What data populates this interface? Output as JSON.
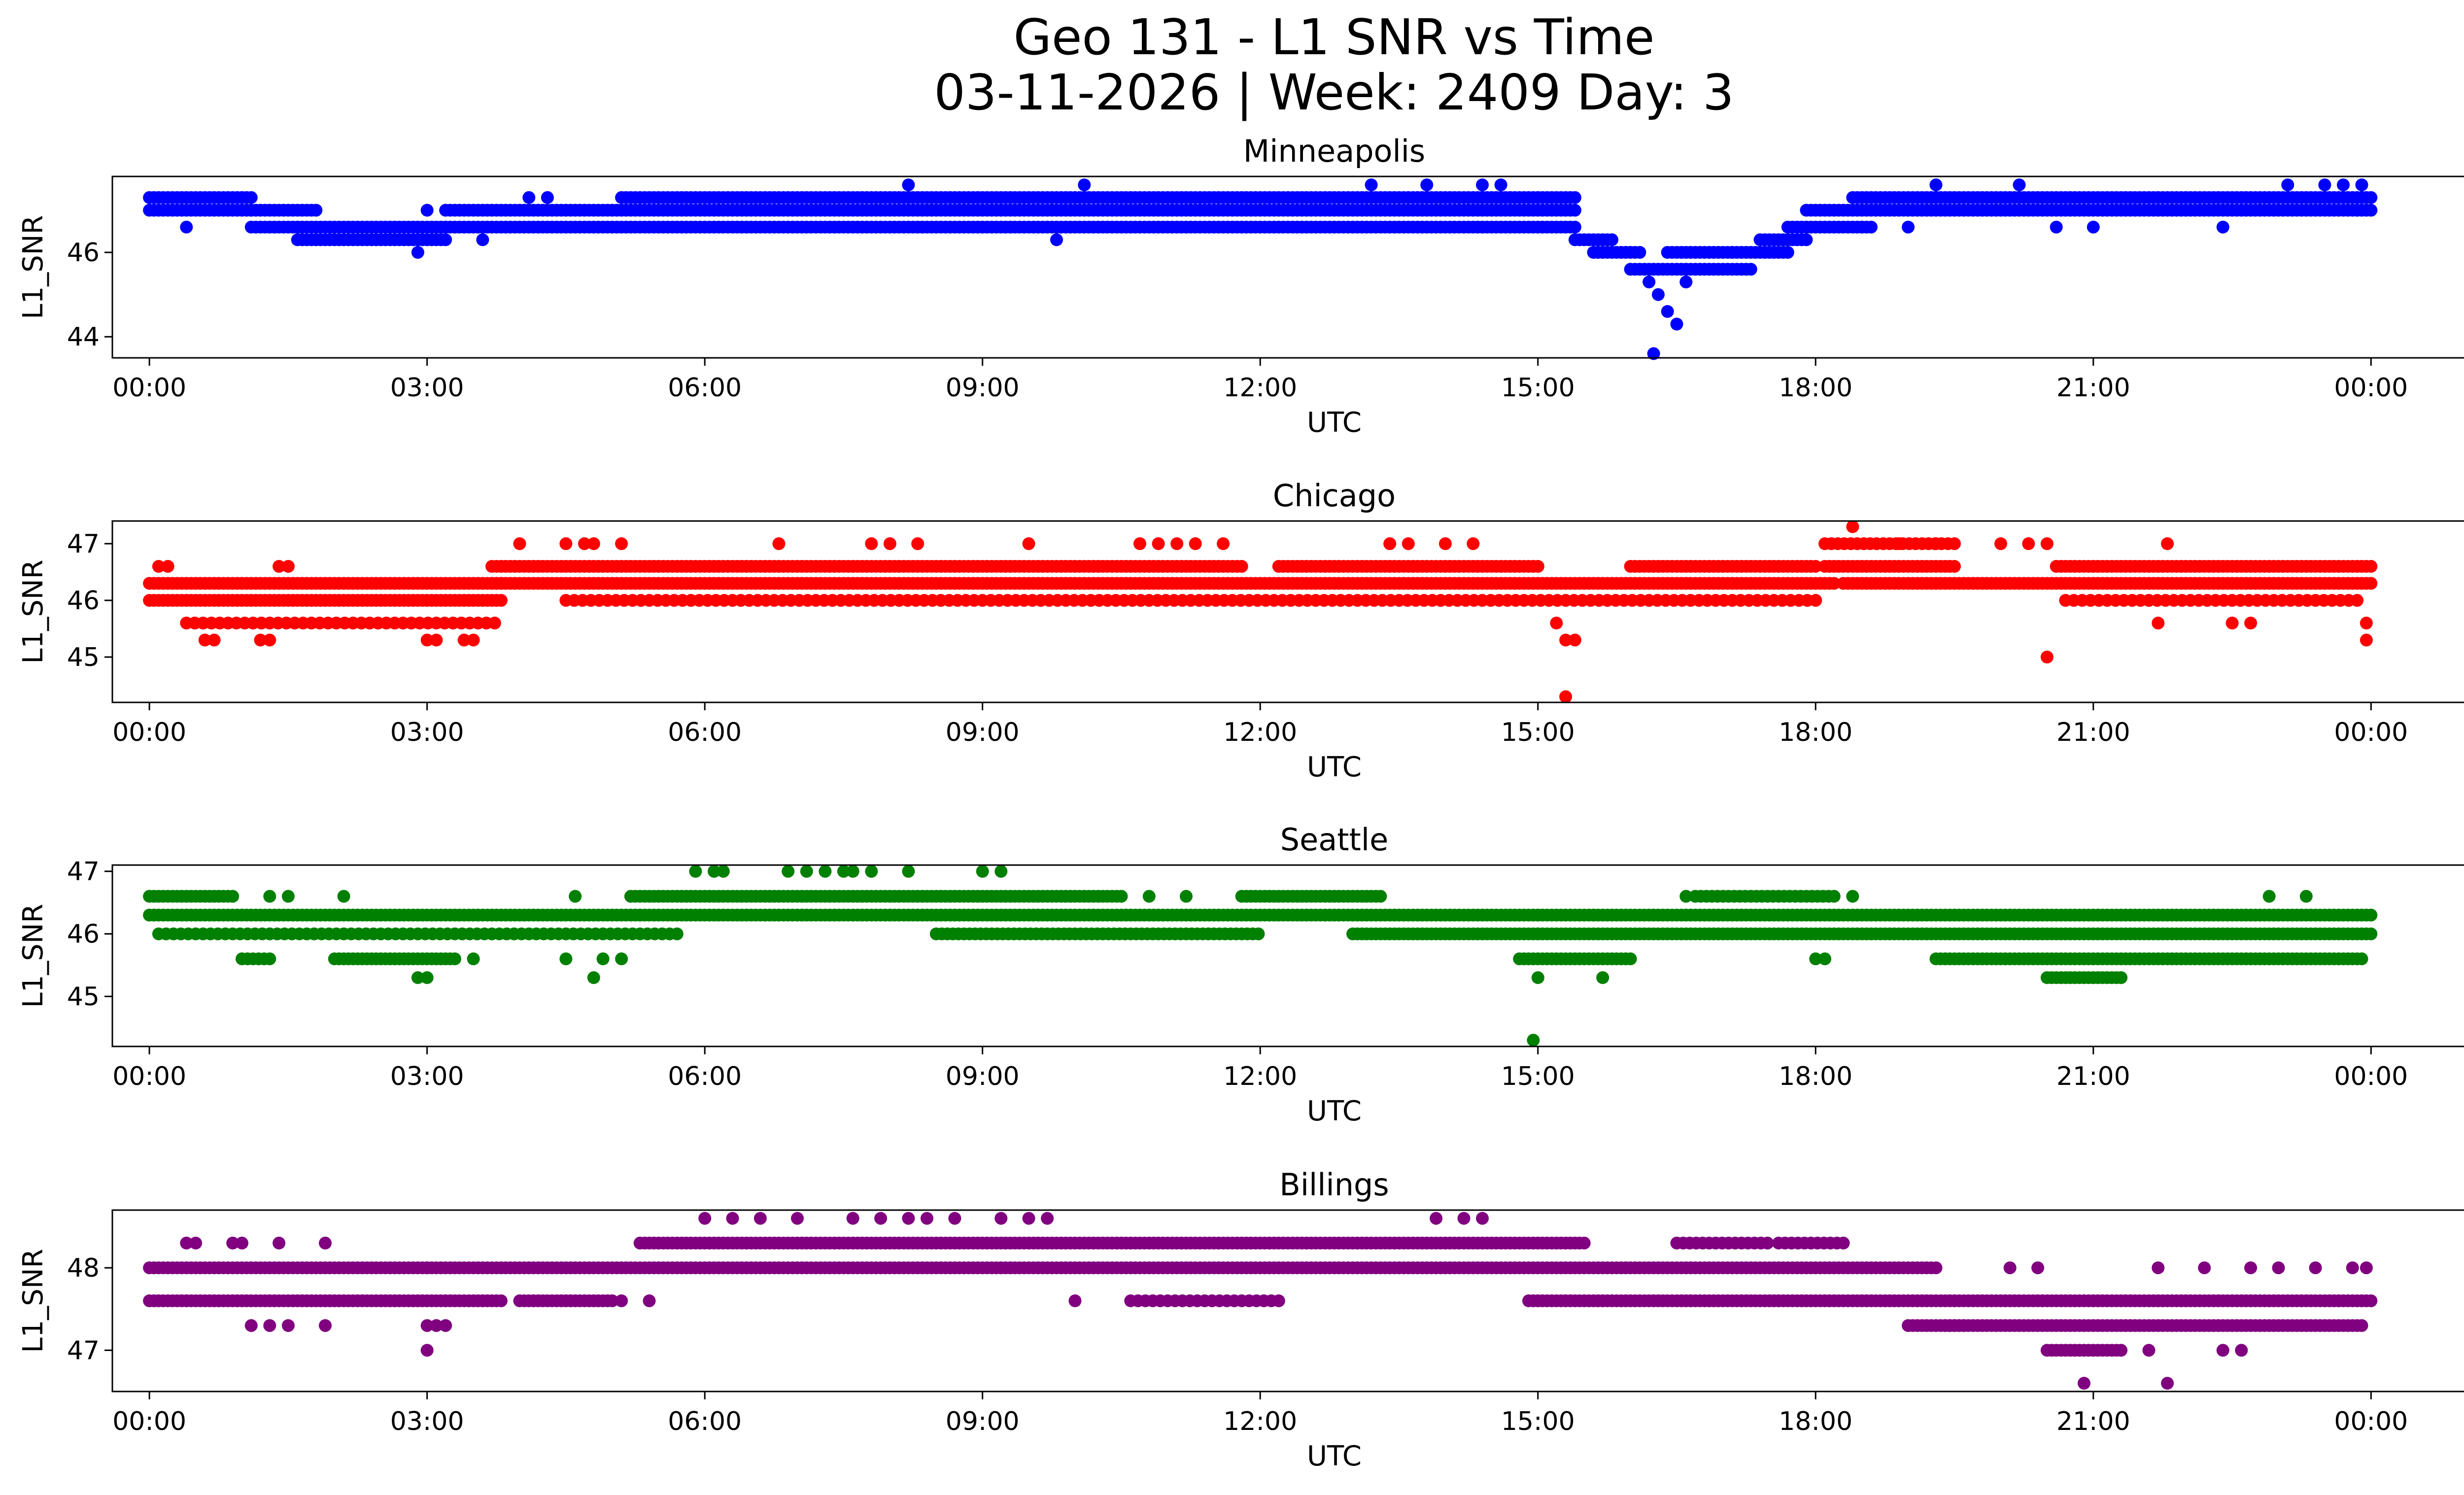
{
  "figure": {
    "title_line1": "Geo 131 - L1 SNR vs Time",
    "title_line2": "03-11-2026 | Week: 2409 Day: 3"
  },
  "chart_data": [
    {
      "type": "scatter",
      "title": "Minneapolis",
      "xlabel": "UTC",
      "ylabel": "L1_SNR",
      "color": "#0000ff",
      "xlim_hours": [
        -0.4,
        26.0
      ],
      "ylim": [
        43.5,
        47.8
      ],
      "x_ticks": [
        "00:00",
        "03:00",
        "06:00",
        "09:00",
        "12:00",
        "15:00",
        "18:00",
        "21:00",
        "00:00"
      ],
      "y_ticks": [
        44,
        46
      ],
      "y_tick_labels": [
        "44",
        "46"
      ],
      "bands": [
        {
          "from": 0.0,
          "to": 1.1,
          "y": 47.0,
          "step": 0.05
        },
        {
          "from": 0.0,
          "to": 1.1,
          "y": 47.3,
          "step": 0.05
        },
        {
          "from": 1.1,
          "to": 1.6,
          "y": 46.6,
          "step": 0.05
        },
        {
          "from": 1.1,
          "to": 1.8,
          "y": 47.0,
          "step": 0.05
        },
        {
          "from": 1.6,
          "to": 3.2,
          "y": 46.3,
          "step": 0.05
        },
        {
          "from": 1.6,
          "to": 3.2,
          "y": 46.6,
          "step": 0.05
        },
        {
          "from": 3.2,
          "to": 15.4,
          "y": 47.0,
          "step": 0.05
        },
        {
          "from": 3.2,
          "to": 15.4,
          "y": 46.6,
          "step": 0.05
        },
        {
          "from": 5.1,
          "to": 15.4,
          "y": 47.3,
          "step": 0.05
        },
        {
          "from": 15.4,
          "to": 15.8,
          "y": 46.3,
          "step": 0.05
        },
        {
          "from": 15.6,
          "to": 16.1,
          "y": 46.0,
          "step": 0.05
        },
        {
          "from": 16.0,
          "to": 17.3,
          "y": 45.6,
          "step": 0.05
        },
        {
          "from": 16.4,
          "to": 17.1,
          "y": 46.0,
          "step": 0.05
        },
        {
          "from": 17.1,
          "to": 17.7,
          "y": 46.0,
          "step": 0.05
        },
        {
          "from": 17.4,
          "to": 17.9,
          "y": 46.3,
          "step": 0.05
        },
        {
          "from": 17.7,
          "to": 18.6,
          "y": 46.6,
          "step": 0.05
        },
        {
          "from": 17.9,
          "to": 24.0,
          "y": 47.0,
          "step": 0.05
        },
        {
          "from": 18.4,
          "to": 24.0,
          "y": 47.3,
          "step": 0.05
        }
      ],
      "points": [
        [
          0.4,
          46.6
        ],
        [
          2.9,
          46.0
        ],
        [
          3.0,
          47.0
        ],
        [
          3.6,
          46.3
        ],
        [
          4.1,
          47.3
        ],
        [
          4.3,
          47.3
        ],
        [
          8.2,
          47.6
        ],
        [
          9.8,
          46.3
        ],
        [
          10.1,
          47.6
        ],
        [
          13.2,
          47.6
        ],
        [
          13.8,
          47.6
        ],
        [
          14.4,
          47.6
        ],
        [
          14.6,
          47.6
        ],
        [
          16.2,
          45.3
        ],
        [
          16.3,
          45.0
        ],
        [
          16.4,
          44.6
        ],
        [
          16.5,
          44.3
        ],
        [
          16.25,
          43.6
        ],
        [
          16.6,
          45.3
        ],
        [
          19.3,
          47.6
        ],
        [
          20.2,
          47.6
        ],
        [
          23.1,
          47.6
        ],
        [
          23.5,
          47.6
        ],
        [
          23.7,
          47.6
        ],
        [
          23.9,
          47.6
        ],
        [
          23.85,
          47.0
        ],
        [
          20.6,
          46.6
        ],
        [
          21.0,
          46.6
        ],
        [
          22.4,
          46.6
        ],
        [
          19.0,
          46.6
        ],
        [
          18.5,
          46.6
        ]
      ]
    },
    {
      "type": "scatter",
      "title": "Chicago",
      "xlabel": "UTC",
      "ylabel": "L1_SNR",
      "color": "#ff0000",
      "xlim_hours": [
        -0.4,
        26.0
      ],
      "ylim": [
        44.2,
        47.4
      ],
      "x_ticks": [
        "00:00",
        "03:00",
        "06:00",
        "09:00",
        "12:00",
        "15:00",
        "18:00",
        "21:00",
        "00:00"
      ],
      "y_ticks": [
        45,
        46,
        47
      ],
      "y_tick_labels": [
        "45",
        "46",
        "47"
      ],
      "bands": [
        {
          "from": 0.0,
          "to": 3.8,
          "y": 46.3,
          "step": 0.05
        },
        {
          "from": 0.0,
          "to": 3.8,
          "y": 46.0,
          "step": 0.05
        },
        {
          "from": 0.4,
          "to": 3.8,
          "y": 45.6,
          "step": 0.09
        },
        {
          "from": 3.7,
          "to": 11.8,
          "y": 46.6,
          "step": 0.05
        },
        {
          "from": 3.7,
          "to": 18.2,
          "y": 46.3,
          "step": 0.05
        },
        {
          "from": 4.5,
          "to": 18.0,
          "y": 46.0,
          "step": 0.09
        },
        {
          "from": 12.2,
          "to": 15.0,
          "y": 46.6,
          "step": 0.05
        },
        {
          "from": 16.0,
          "to": 18.0,
          "y": 46.6,
          "step": 0.05
        },
        {
          "from": 18.1,
          "to": 19.5,
          "y": 46.6,
          "step": 0.05
        },
        {
          "from": 18.1,
          "to": 19.5,
          "y": 47.0,
          "step": 0.07
        },
        {
          "from": 18.3,
          "to": 24.0,
          "y": 46.3,
          "step": 0.05
        },
        {
          "from": 20.6,
          "to": 24.0,
          "y": 46.6,
          "step": 0.05
        },
        {
          "from": 20.7,
          "to": 23.9,
          "y": 46.0,
          "step": 0.09
        }
      ],
      "points": [
        [
          0.1,
          46.6
        ],
        [
          0.2,
          46.6
        ],
        [
          0.6,
          45.3
        ],
        [
          0.7,
          45.3
        ],
        [
          1.2,
          45.3
        ],
        [
          1.3,
          45.3
        ],
        [
          1.4,
          46.6
        ],
        [
          1.5,
          46.6
        ],
        [
          3.0,
          45.3
        ],
        [
          3.1,
          45.3
        ],
        [
          3.4,
          45.3
        ],
        [
          3.5,
          45.3
        ],
        [
          4.0,
          47.0
        ],
        [
          4.5,
          47.0
        ],
        [
          4.7,
          47.0
        ],
        [
          4.8,
          47.0
        ],
        [
          5.1,
          47.0
        ],
        [
          6.8,
          47.0
        ],
        [
          7.8,
          47.0
        ],
        [
          8.0,
          47.0
        ],
        [
          8.3,
          47.0
        ],
        [
          9.5,
          47.0
        ],
        [
          10.7,
          47.0
        ],
        [
          10.9,
          47.0
        ],
        [
          11.1,
          47.0
        ],
        [
          11.3,
          47.0
        ],
        [
          11.6,
          47.0
        ],
        [
          13.4,
          47.0
        ],
        [
          13.6,
          47.0
        ],
        [
          14.0,
          47.0
        ],
        [
          14.3,
          47.0
        ],
        [
          15.2,
          45.6
        ],
        [
          15.3,
          45.3
        ],
        [
          15.4,
          45.3
        ],
        [
          15.3,
          44.3
        ],
        [
          18.4,
          47.3
        ],
        [
          18.9,
          47.0
        ],
        [
          19.3,
          47.0
        ],
        [
          20.0,
          47.0
        ],
        [
          20.3,
          47.0
        ],
        [
          20.5,
          47.0
        ],
        [
          20.5,
          45.0
        ],
        [
          21.6,
          46.0
        ],
        [
          21.7,
          45.6
        ],
        [
          21.8,
          47.0
        ],
        [
          22.5,
          45.6
        ],
        [
          22.7,
          45.6
        ],
        [
          23.95,
          45.6
        ],
        [
          23.95,
          45.3
        ]
      ]
    },
    {
      "type": "scatter",
      "title": "Seattle",
      "xlabel": "UTC",
      "ylabel": "L1_SNR",
      "color": "#008000",
      "xlim_hours": [
        -0.4,
        26.0
      ],
      "ylim": [
        44.2,
        47.1
      ],
      "x_ticks": [
        "00:00",
        "03:00",
        "06:00",
        "09:00",
        "12:00",
        "15:00",
        "18:00",
        "21:00",
        "00:00"
      ],
      "y_ticks": [
        45,
        46,
        47
      ],
      "y_tick_labels": [
        "45",
        "46",
        "47"
      ],
      "bands": [
        {
          "from": 0.0,
          "to": 0.9,
          "y": 46.6,
          "step": 0.05
        },
        {
          "from": 0.0,
          "to": 5.3,
          "y": 46.3,
          "step": 0.05
        },
        {
          "from": 0.1,
          "to": 5.7,
          "y": 46.0,
          "step": 0.08
        },
        {
          "from": 1.0,
          "to": 1.3,
          "y": 45.6,
          "step": 0.06
        },
        {
          "from": 2.0,
          "to": 3.3,
          "y": 45.6,
          "step": 0.05
        },
        {
          "from": 5.2,
          "to": 10.5,
          "y": 46.6,
          "step": 0.05
        },
        {
          "from": 5.3,
          "to": 15.0,
          "y": 46.3,
          "step": 0.05
        },
        {
          "from": 8.5,
          "to": 12.0,
          "y": 46.0,
          "step": 0.06
        },
        {
          "from": 11.8,
          "to": 13.3,
          "y": 46.6,
          "step": 0.05
        },
        {
          "from": 13.0,
          "to": 15.0,
          "y": 46.0,
          "step": 0.05
        },
        {
          "from": 15.0,
          "to": 24.0,
          "y": 46.3,
          "step": 0.05
        },
        {
          "from": 15.0,
          "to": 24.0,
          "y": 46.0,
          "step": 0.05
        },
        {
          "from": 14.8,
          "to": 16.0,
          "y": 45.6,
          "step": 0.05
        },
        {
          "from": 16.7,
          "to": 18.2,
          "y": 46.6,
          "step": 0.06
        },
        {
          "from": 19.3,
          "to": 23.9,
          "y": 45.6,
          "step": 0.05
        },
        {
          "from": 20.5,
          "to": 21.3,
          "y": 45.3,
          "step": 0.05
        }
      ],
      "points": [
        [
          1.3,
          46.6
        ],
        [
          1.5,
          46.6
        ],
        [
          2.1,
          46.6
        ],
        [
          2.9,
          45.3
        ],
        [
          3.0,
          45.3
        ],
        [
          3.5,
          45.6
        ],
        [
          4.5,
          45.6
        ],
        [
          4.6,
          46.6
        ],
        [
          4.8,
          45.3
        ],
        [
          4.9,
          45.6
        ],
        [
          5.1,
          45.6
        ],
        [
          5.9,
          47.0
        ],
        [
          6.1,
          47.0
        ],
        [
          6.2,
          47.0
        ],
        [
          6.9,
          47.0
        ],
        [
          7.1,
          47.0
        ],
        [
          7.3,
          47.0
        ],
        [
          7.5,
          47.0
        ],
        [
          7.6,
          47.0
        ],
        [
          7.8,
          47.0
        ],
        [
          8.2,
          47.0
        ],
        [
          9.0,
          47.0
        ],
        [
          9.2,
          47.0
        ],
        [
          10.8,
          46.6
        ],
        [
          11.2,
          46.6
        ],
        [
          15.0,
          45.3
        ],
        [
          14.95,
          44.3
        ],
        [
          15.7,
          45.3
        ],
        [
          15.6,
          46.3
        ],
        [
          16.6,
          46.6
        ],
        [
          18.4,
          46.6
        ],
        [
          18.0,
          45.6
        ],
        [
          18.1,
          45.6
        ],
        [
          22.9,
          46.6
        ],
        [
          23.3,
          46.6
        ]
      ]
    },
    {
      "type": "scatter",
      "title": "Billings",
      "xlabel": "UTC",
      "ylabel": "L1_SNR",
      "color": "#800080",
      "xlim_hours": [
        -0.4,
        26.0
      ],
      "ylim": [
        46.5,
        48.7
      ],
      "x_ticks": [
        "00:00",
        "03:00",
        "06:00",
        "09:00",
        "12:00",
        "15:00",
        "18:00",
        "21:00",
        "00:00"
      ],
      "y_ticks": [
        47,
        48
      ],
      "y_tick_labels": [
        "47",
        "48"
      ],
      "bands": [
        {
          "from": 0.0,
          "to": 3.0,
          "y": 48.0,
          "step": 0.05
        },
        {
          "from": 0.0,
          "to": 3.8,
          "y": 47.6,
          "step": 0.05
        },
        {
          "from": 3.0,
          "to": 19.3,
          "y": 48.0,
          "step": 0.05
        },
        {
          "from": 5.3,
          "to": 15.5,
          "y": 48.3,
          "step": 0.05
        },
        {
          "from": 4.0,
          "to": 5.0,
          "y": 47.6,
          "step": 0.05
        },
        {
          "from": 10.6,
          "to": 12.2,
          "y": 47.6,
          "step": 0.08
        },
        {
          "from": 14.9,
          "to": 24.0,
          "y": 47.6,
          "step": 0.05
        },
        {
          "from": 16.5,
          "to": 17.5,
          "y": 48.3,
          "step": 0.07
        },
        {
          "from": 17.6,
          "to": 18.3,
          "y": 48.3,
          "step": 0.07
        },
        {
          "from": 19.0,
          "to": 19.6,
          "y": 47.3,
          "step": 0.05
        },
        {
          "from": 19.4,
          "to": 23.9,
          "y": 47.3,
          "step": 0.05
        },
        {
          "from": 20.5,
          "to": 21.3,
          "y": 47.0,
          "step": 0.05
        }
      ],
      "points": [
        [
          0.4,
          48.3
        ],
        [
          0.5,
          48.3
        ],
        [
          0.9,
          48.3
        ],
        [
          1.0,
          48.3
        ],
        [
          1.4,
          48.3
        ],
        [
          1.9,
          48.3
        ],
        [
          1.1,
          47.3
        ],
        [
          1.3,
          47.3
        ],
        [
          1.5,
          47.3
        ],
        [
          1.9,
          47.3
        ],
        [
          3.0,
          47.3
        ],
        [
          3.1,
          47.3
        ],
        [
          3.2,
          47.3
        ],
        [
          3.0,
          47.0
        ],
        [
          5.1,
          47.6
        ],
        [
          5.4,
          47.6
        ],
        [
          6.0,
          48.6
        ],
        [
          6.3,
          48.6
        ],
        [
          6.6,
          48.6
        ],
        [
          7.0,
          48.6
        ],
        [
          7.6,
          48.6
        ],
        [
          7.9,
          48.6
        ],
        [
          8.2,
          48.6
        ],
        [
          8.4,
          48.6
        ],
        [
          8.7,
          48.6
        ],
        [
          9.2,
          48.6
        ],
        [
          9.5,
          48.6
        ],
        [
          9.7,
          48.6
        ],
        [
          10.0,
          47.6
        ],
        [
          13.9,
          48.6
        ],
        [
          14.2,
          48.6
        ],
        [
          14.4,
          48.6
        ],
        [
          20.1,
          48.0
        ],
        [
          20.4,
          48.0
        ],
        [
          21.7,
          48.0
        ],
        [
          22.2,
          48.0
        ],
        [
          22.7,
          48.0
        ],
        [
          23.0,
          48.0
        ],
        [
          23.4,
          48.0
        ],
        [
          23.8,
          48.0
        ],
        [
          23.95,
          48.0
        ],
        [
          20.9,
          46.6
        ],
        [
          21.8,
          46.6
        ],
        [
          21.6,
          47.0
        ],
        [
          22.4,
          47.0
        ],
        [
          22.6,
          47.0
        ]
      ]
    }
  ]
}
